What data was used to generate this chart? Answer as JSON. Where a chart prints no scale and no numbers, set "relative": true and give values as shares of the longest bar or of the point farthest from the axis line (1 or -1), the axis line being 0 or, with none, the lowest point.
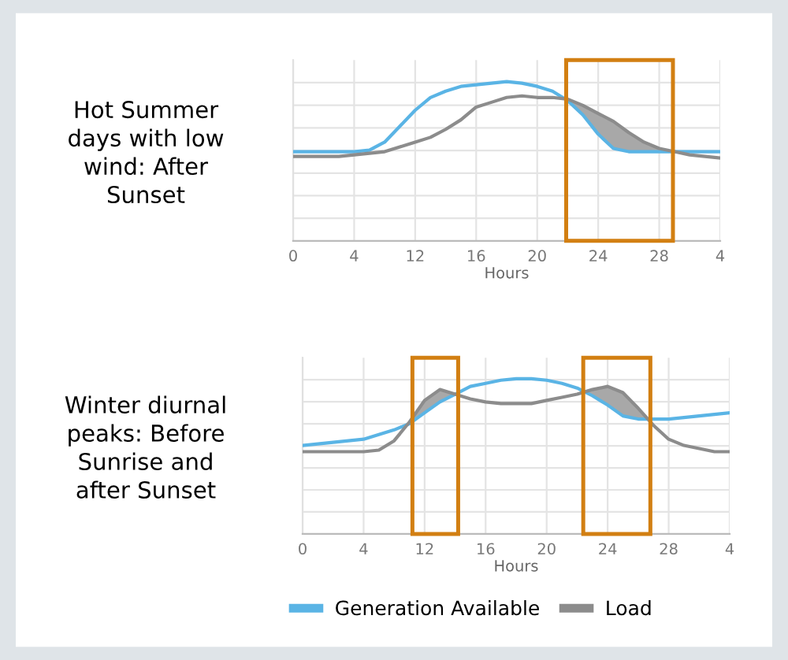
{
  "chart_data": [
    {
      "type": "line",
      "title": "Hot Summer\ndays with low\nwind: After\nSunset",
      "xlabel": "Hours",
      "relative": true,
      "grid": true,
      "marker": "none",
      "line_style": "solid",
      "categories": [
        "0",
        null,
        null,
        null,
        "4",
        null,
        null,
        null,
        "12",
        null,
        null,
        null,
        "16",
        null,
        null,
        null,
        "20",
        null,
        null,
        null,
        "24",
        null,
        null,
        null,
        "28",
        null,
        null,
        null,
        "4"
      ],
      "series": [
        {
          "color": "#5ab4e5",
          "values": [
            0.56,
            0.56,
            0.56,
            0.56,
            0.56,
            0.57,
            0.62,
            0.72,
            0.82,
            0.9,
            0.94,
            0.97,
            0.98,
            0.99,
            1,
            0.99,
            0.97,
            0.94,
            0.88,
            0.79,
            0.67,
            0.58,
            0.56,
            0.56,
            0.56,
            0.56,
            0.56,
            0.56,
            0.56
          ]
        },
        {
          "color": "#8c8c8c",
          "values": [
            0.53,
            0.53,
            0.53,
            0.53,
            0.54,
            0.55,
            0.56,
            0.59,
            0.62,
            0.65,
            0.7,
            0.76,
            0.84,
            0.87,
            0.9,
            0.91,
            0.9,
            0.9,
            0.89,
            0.85,
            0.8,
            0.75,
            0.68,
            0.62,
            0.58,
            0.56,
            0.54,
            0.53,
            0.52
          ]
        }
      ]
    },
    {
      "type": "line",
      "title": "Winter diurnal\npeaks: Before\nSunrise and\nafter Sunset",
      "xlabel": "Hours",
      "relative": true,
      "grid": true,
      "legend": "bottom",
      "marker": "none",
      "line_style": "solid",
      "categories": [
        "0",
        null,
        null,
        null,
        "4",
        null,
        null,
        null,
        "12",
        null,
        null,
        null,
        "16",
        null,
        null,
        null,
        "20",
        null,
        null,
        null,
        "24",
        null,
        null,
        null,
        "28",
        null,
        null,
        null,
        "4"
      ],
      "series": [
        {
          "name": "Generation Available",
          "color": "#5ab4e5",
          "values": [
            0.57,
            0.58,
            0.59,
            0.6,
            0.61,
            0.64,
            0.67,
            0.71,
            0.78,
            0.85,
            0.9,
            0.95,
            0.97,
            0.99,
            1,
            1,
            0.99,
            0.97,
            0.94,
            0.89,
            0.83,
            0.76,
            0.74,
            0.74,
            0.74,
            0.75,
            0.76,
            0.77,
            0.78
          ]
        },
        {
          "name": "Load",
          "color": "#8c8c8c",
          "values": [
            0.53,
            0.53,
            0.53,
            0.53,
            0.53,
            0.54,
            0.6,
            0.72,
            0.86,
            0.93,
            0.9,
            0.87,
            0.85,
            0.84,
            0.84,
            0.84,
            0.86,
            0.88,
            0.9,
            0.93,
            0.95,
            0.91,
            0.81,
            0.7,
            0.61,
            0.57,
            0.55,
            0.53,
            0.53
          ]
        }
      ]
    }
  ]
}
